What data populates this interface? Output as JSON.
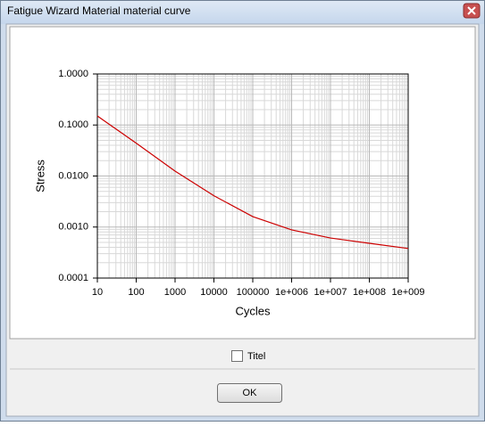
{
  "window": {
    "title": "Fatigue Wizard Material material curve",
    "checkbox": "Titel",
    "button": "OK"
  },
  "chart_data": {
    "type": "line",
    "x_label": "Cycles",
    "y_label": "Stress",
    "x": [
      10,
      100,
      1000,
      10000,
      100000,
      1000000,
      10000000,
      100000000,
      1000000000
    ],
    "series": [
      {
        "name": "material curve",
        "color": "#cc0000",
        "values": [
          0.15,
          0.044,
          0.0125,
          0.0041,
          0.0016,
          0.00088,
          0.00061,
          0.00048,
          0.00038
        ]
      }
    ],
    "xlim": [
      10,
      1000000000
    ],
    "ylim": [
      0.0001,
      1
    ],
    "xlog": true,
    "ylog": true,
    "grid": true,
    "xticks": [
      10,
      100,
      1000,
      10000,
      100000,
      {
        "value": 1000000,
        "label": "1e+006"
      },
      {
        "value": 10000000,
        "label": "1e+007"
      },
      {
        "value": 100000000,
        "label": "1e+008"
      },
      {
        "value": 1000000000,
        "label": "1e+009"
      }
    ],
    "yticks": [
      {
        "value": 0.0001,
        "label": "0.0001"
      },
      {
        "value": 0.001,
        "label": "0.0010"
      },
      {
        "value": 0.01,
        "label": "0.0100"
      },
      {
        "value": 0.1,
        "label": "0.1000"
      },
      {
        "value": 1,
        "label": "1.0000"
      }
    ]
  }
}
